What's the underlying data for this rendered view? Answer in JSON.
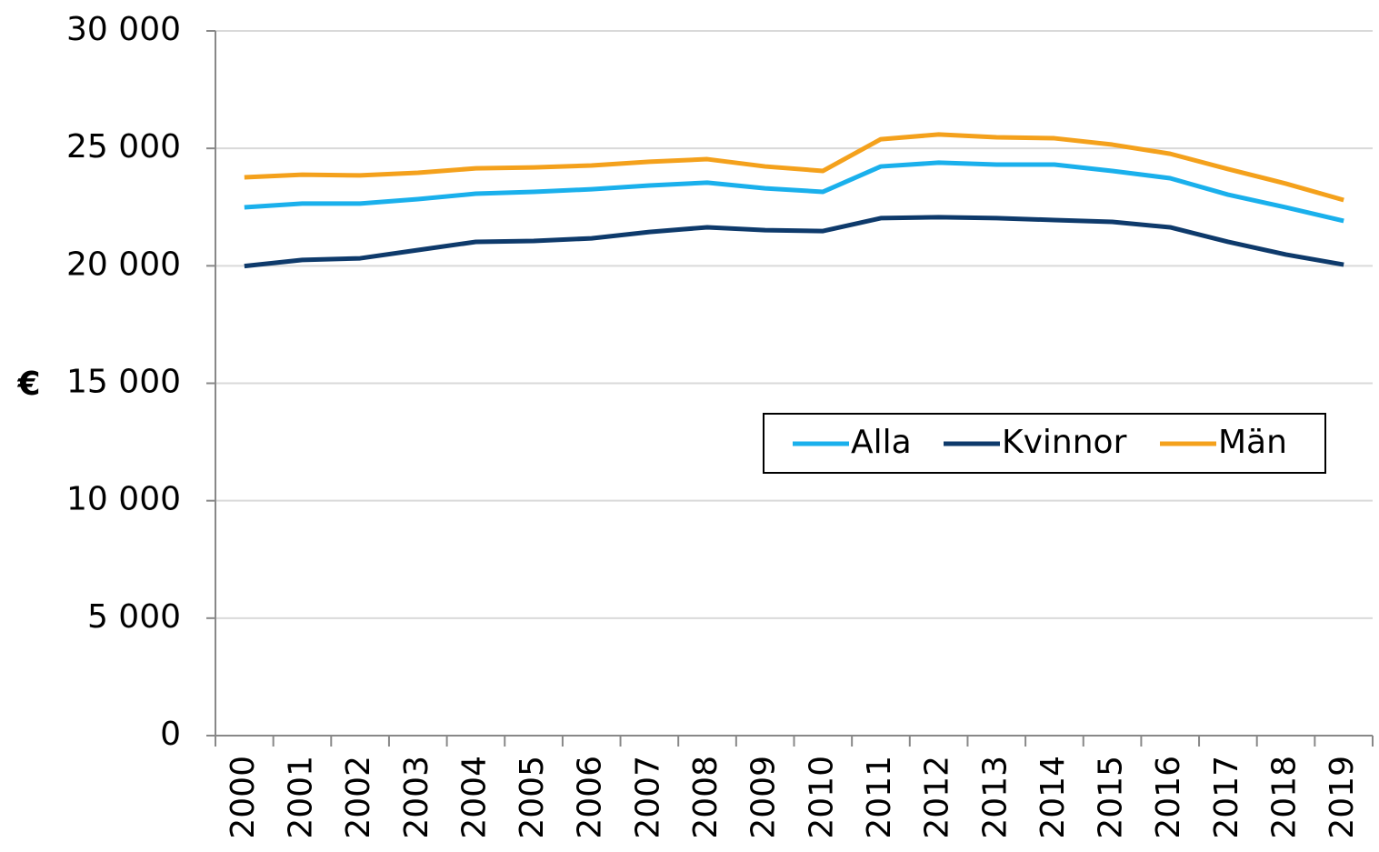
{
  "chart_data": {
    "type": "line",
    "ylabel": "€",
    "categories": [
      "2000",
      "2001",
      "2002",
      "2003",
      "2004",
      "2005",
      "2006",
      "2007",
      "2008",
      "2009",
      "2010",
      "2011",
      "2012",
      "2013",
      "2014",
      "2015",
      "2016",
      "2017",
      "2018",
      "2019"
    ],
    "series": [
      {
        "name": "Alla",
        "color": "#1ab0ec",
        "values": [
          22490,
          22650,
          22650,
          22840,
          23070,
          23150,
          23260,
          23420,
          23540,
          23300,
          23150,
          24230,
          24390,
          24310,
          24310,
          24040,
          23730,
          23030,
          22490,
          21910
        ]
      },
      {
        "name": "Kvinnor",
        "color": "#0e3a6b",
        "values": [
          19990,
          20250,
          20320,
          20670,
          21020,
          21060,
          21170,
          21440,
          21640,
          21520,
          21480,
          22030,
          22070,
          22030,
          21950,
          21870,
          21640,
          21020,
          20480,
          20050
        ]
      },
      {
        "name": "Män",
        "color": "#f4a11c",
        "values": [
          23770,
          23880,
          23850,
          23960,
          24150,
          24190,
          24270,
          24430,
          24540,
          24230,
          24040,
          25390,
          25590,
          25470,
          25430,
          25160,
          24770,
          24120,
          23500,
          22800
        ]
      }
    ],
    "ylim": [
      0,
      30000
    ],
    "yticks": [
      0,
      {
        "value": 5000,
        "label": "5 000"
      },
      {
        "value": 10000,
        "label": "10 000"
      },
      {
        "value": 15000,
        "label": "15 000"
      },
      {
        "value": 20000,
        "label": "20 000"
      },
      {
        "value": 25000,
        "label": "25 000"
      },
      {
        "value": 30000,
        "label": "30 000"
      }
    ],
    "grid": true,
    "legend_position": "right"
  }
}
